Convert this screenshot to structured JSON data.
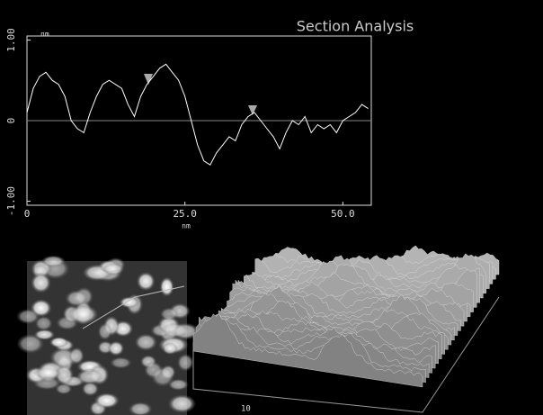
{
  "chart_data": {
    "type": "line",
    "title": "Section Analysis",
    "x_unit": "nm",
    "y_unit": "nm",
    "x": [
      0,
      1,
      2,
      3,
      4,
      5,
      6,
      7,
      8,
      9,
      10,
      11,
      12,
      13,
      14,
      15,
      16,
      17,
      18,
      19,
      20,
      21,
      22,
      23,
      24,
      25,
      26,
      27,
      28,
      29,
      30,
      31,
      32,
      33,
      34,
      35,
      36,
      37,
      38,
      39,
      40,
      41,
      42,
      43,
      44,
      45,
      46,
      47,
      48,
      49,
      50,
      51,
      52,
      53,
      54
    ],
    "values": [
      0.1,
      0.4,
      0.55,
      0.6,
      0.5,
      0.45,
      0.3,
      0.0,
      -0.1,
      -0.15,
      0.1,
      0.3,
      0.45,
      0.5,
      0.45,
      0.4,
      0.2,
      0.05,
      0.3,
      0.45,
      0.55,
      0.65,
      0.7,
      0.6,
      0.5,
      0.3,
      0.0,
      -0.3,
      -0.5,
      -0.55,
      -0.4,
      -0.3,
      -0.2,
      -0.25,
      -0.05,
      0.05,
      0.1,
      0.0,
      -0.1,
      -0.2,
      -0.35,
      -0.15,
      0.0,
      -0.05,
      0.05,
      -0.15,
      -0.05,
      -0.1,
      -0.05,
      -0.15,
      0.0,
      0.05,
      0.1,
      0.2,
      0.15
    ],
    "color": "#ffffff",
    "xlim": [
      0,
      54.5
    ],
    "xticks": [
      0,
      {
        "value": 25,
        "label": "25.0"
      },
      {
        "value": 50,
        "label": "50.0"
      }
    ],
    "ylim": [
      -1.05,
      1.05
    ],
    "yticks": [
      {
        "value": -1,
        "label": "-1.00"
      },
      0,
      {
        "value": 1,
        "label": "1.00"
      }
    ],
    "zero_line": true,
    "surface_axis_label": "10"
  }
}
